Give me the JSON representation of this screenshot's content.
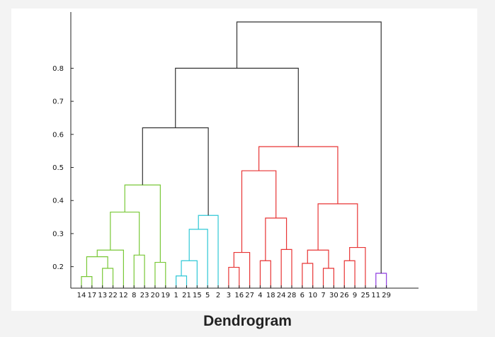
{
  "caption": "Dendrogram",
  "chart_data": {
    "type": "dendrogram",
    "title": "",
    "xlabel": "",
    "ylabel": "",
    "ylim": [
      0.135,
      0.97
    ],
    "yticks": [
      "0.2",
      "0.3",
      "0.4",
      "0.5",
      "0.6",
      "0.7",
      "0.8"
    ],
    "grid": false,
    "leaf_order": [
      "14",
      "17",
      "13",
      "22",
      "12",
      "8",
      "23",
      "20",
      "19",
      "1",
      "21",
      "15",
      "5",
      "2",
      "3",
      "16",
      "27",
      "4",
      "18",
      "24",
      "28",
      "6",
      "10",
      "7",
      "30",
      "26",
      "9",
      "25",
      "11",
      "29"
    ],
    "colors": {
      "green": "#79c837",
      "cyan": "#2fc8d6",
      "red": "#e83434",
      "purple": "#8e3be0",
      "link": "#333333"
    },
    "merges": [
      {
        "a": "14",
        "b": "17",
        "height": 0.17,
        "color": "green"
      },
      {
        "a": "13",
        "b": "22",
        "height": 0.195,
        "color": "green"
      },
      {
        "a": "14+17",
        "b": "13+22",
        "height": 0.23,
        "color": "green"
      },
      {
        "a": "14+17+13+22",
        "b": "12",
        "height": 0.25,
        "color": "green"
      },
      {
        "a": "8",
        "b": "23",
        "height": 0.235,
        "color": "green"
      },
      {
        "a": "14+17+13+22+12",
        "b": "8+23",
        "height": 0.365,
        "color": "green"
      },
      {
        "a": "20",
        "b": "19",
        "height": 0.213,
        "color": "green"
      },
      {
        "a": "green-left",
        "b": "20+19",
        "height": 0.447,
        "color": "green"
      },
      {
        "a": "1",
        "b": "21",
        "height": 0.172,
        "color": "cyan"
      },
      {
        "a": "1+21",
        "b": "15",
        "height": 0.218,
        "color": "cyan"
      },
      {
        "a": "1+21+15",
        "b": "5",
        "height": 0.313,
        "color": "cyan"
      },
      {
        "a": "1+21+15+5",
        "b": "2",
        "height": 0.355,
        "color": "cyan"
      },
      {
        "a": "green",
        "b": "cyan",
        "height": 0.62,
        "color": "link"
      },
      {
        "a": "3",
        "b": "16",
        "height": 0.198,
        "color": "red"
      },
      {
        "a": "3+16",
        "b": "27",
        "height": 0.243,
        "color": "red"
      },
      {
        "a": "4",
        "b": "18",
        "height": 0.218,
        "color": "red"
      },
      {
        "a": "24",
        "b": "28",
        "height": 0.252,
        "color": "red"
      },
      {
        "a": "4+18",
        "b": "24+28",
        "height": 0.347,
        "color": "red"
      },
      {
        "a": "3+16+27",
        "b": "4+18+24+28",
        "height": 0.49,
        "color": "red"
      },
      {
        "a": "6",
        "b": "10",
        "height": 0.21,
        "color": "red"
      },
      {
        "a": "7",
        "b": "30",
        "height": 0.195,
        "color": "red"
      },
      {
        "a": "6+10",
        "b": "7+30",
        "height": 0.25,
        "color": "red"
      },
      {
        "a": "26",
        "b": "9",
        "height": 0.218,
        "color": "red"
      },
      {
        "a": "26+9",
        "b": "25",
        "height": 0.258,
        "color": "red"
      },
      {
        "a": "6+10+7+30",
        "b": "26+9+25",
        "height": 0.39,
        "color": "red"
      },
      {
        "a": "red-left",
        "b": "red-right",
        "height": 0.563,
        "color": "red"
      },
      {
        "a": "green+cyan",
        "b": "red",
        "height": 0.8,
        "color": "link"
      },
      {
        "a": "11",
        "b": "29",
        "height": 0.18,
        "color": "purple"
      },
      {
        "a": "main",
        "b": "11+29",
        "height": 0.94,
        "color": "link"
      }
    ]
  }
}
